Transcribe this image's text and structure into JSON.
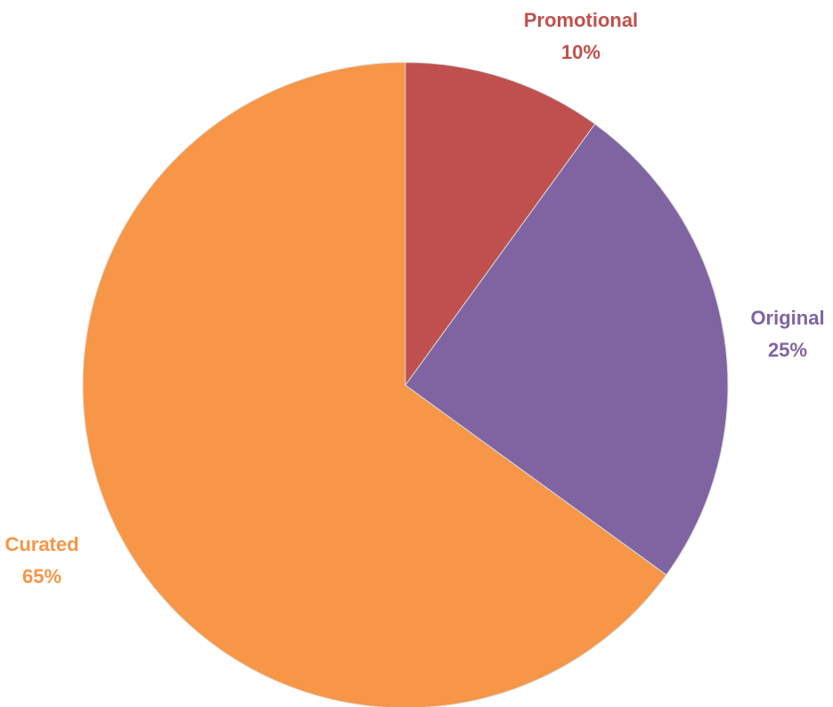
{
  "chart_data": {
    "type": "pie",
    "slices": [
      {
        "label": "Promotional",
        "value": 10,
        "value_label": "10%",
        "color": "#C0504D"
      },
      {
        "label": "Original",
        "value": 25,
        "value_label": "25%",
        "color": "#8064A2"
      },
      {
        "label": "Curated",
        "value": 65,
        "value_label": "65%",
        "color": "#F79646"
      }
    ],
    "start": "top",
    "direction": "clockwise",
    "legend": "none",
    "labels": "outside"
  }
}
